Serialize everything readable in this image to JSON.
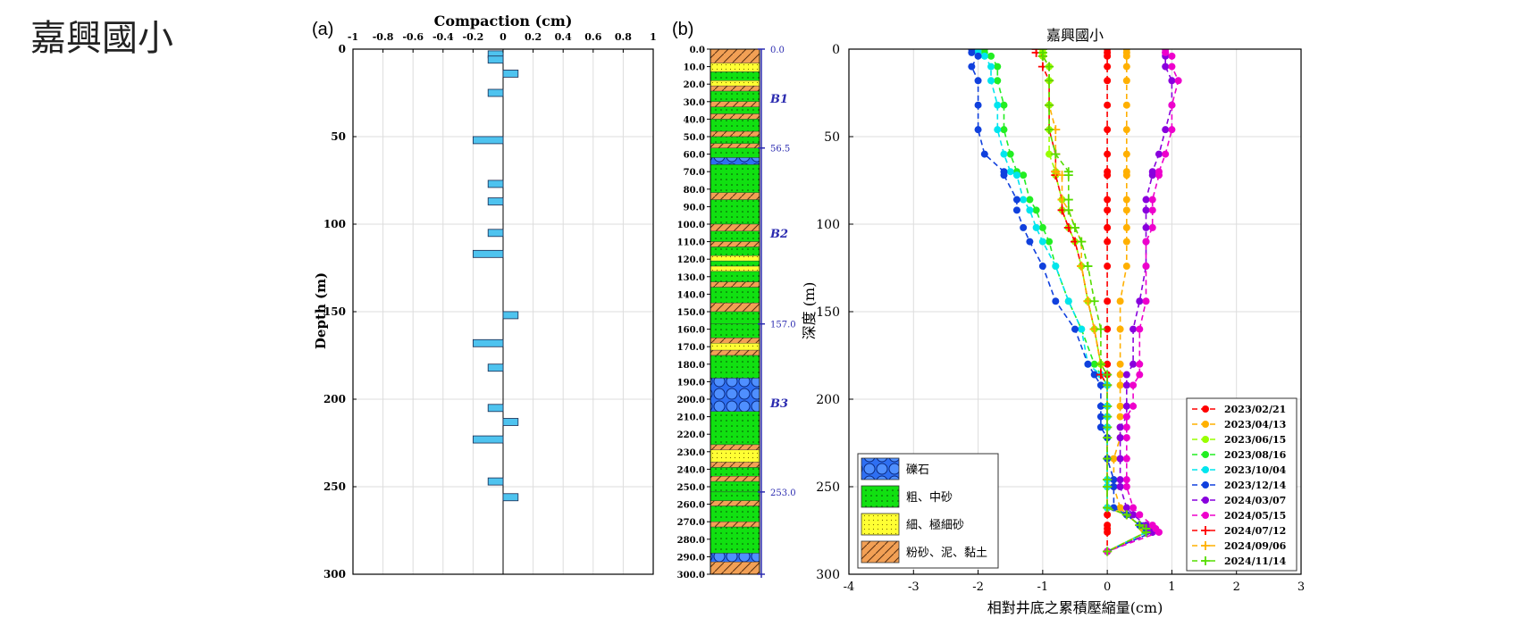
{
  "page_title": "嘉興國小",
  "panel_a_label": "(a)",
  "panel_b_label": "(b)",
  "chart_data": [
    {
      "type": "bar",
      "orientation": "horizontal",
      "title": "Compaction (cm)",
      "xlabel": "",
      "ylabel": "Depth (m)",
      "xlim": [
        -1,
        1
      ],
      "ylim": [
        0,
        300
      ],
      "x_ticks": [
        "-1",
        "-0.8",
        "-0.6",
        "-0.4",
        "-0.2",
        "0",
        "0.2",
        "0.4",
        "0.6",
        "0.8",
        "1"
      ],
      "y_ticks": [
        "0",
        "50",
        "100",
        "150",
        "200",
        "250",
        "300"
      ],
      "grid": true,
      "bars": [
        {
          "depth": 3,
          "value": -0.1
        },
        {
          "depth": 6,
          "value": -0.1
        },
        {
          "depth": 14,
          "value": 0.1
        },
        {
          "depth": 25,
          "value": -0.1
        },
        {
          "depth": 52,
          "value": -0.2
        },
        {
          "depth": 77,
          "value": -0.1
        },
        {
          "depth": 87,
          "value": -0.1
        },
        {
          "depth": 105,
          "value": -0.1
        },
        {
          "depth": 117,
          "value": -0.2
        },
        {
          "depth": 152,
          "value": 0.1
        },
        {
          "depth": 168,
          "value": -0.2
        },
        {
          "depth": 182,
          "value": -0.1
        },
        {
          "depth": 205,
          "value": -0.1
        },
        {
          "depth": 213,
          "value": 0.1
        },
        {
          "depth": 223,
          "value": -0.2
        },
        {
          "depth": 247,
          "value": -0.1
        },
        {
          "depth": 256,
          "value": 0.1
        }
      ]
    },
    {
      "type": "table",
      "subtype": "borehole-column",
      "depth_ticks": [
        "0.0",
        "10.0",
        "20.0",
        "30.0",
        "40.0",
        "50.0",
        "60.0",
        "70.0",
        "80.0",
        "90.0",
        "100.0",
        "110.0",
        "120.0",
        "130.0",
        "140.0",
        "150.0",
        "160.0",
        "170.0",
        "180.0",
        "190.0",
        "200.0",
        "210.0",
        "220.0",
        "230.0",
        "240.0",
        "250.0",
        "260.0",
        "270.0",
        "280.0",
        "290.0",
        "300.0"
      ],
      "marker_depths": [
        "0.0",
        "56.5",
        "157.0",
        "253.0"
      ],
      "marker_values": [
        0,
        56.5,
        157,
        253,
        300
      ],
      "layer_labels": [
        {
          "label": "B1",
          "depth": 28
        },
        {
          "label": "B2",
          "depth": 105
        },
        {
          "label": "B3",
          "depth": 202
        }
      ],
      "layers": [
        {
          "from": 0,
          "to": 8,
          "type": "silt"
        },
        {
          "from": 8,
          "to": 13,
          "type": "fine"
        },
        {
          "from": 13,
          "to": 18,
          "type": "coarse"
        },
        {
          "from": 18,
          "to": 21,
          "type": "fine"
        },
        {
          "from": 21,
          "to": 24,
          "type": "silt"
        },
        {
          "from": 24,
          "to": 30,
          "type": "coarse"
        },
        {
          "from": 30,
          "to": 33,
          "type": "silt"
        },
        {
          "from": 33,
          "to": 37,
          "type": "coarse"
        },
        {
          "from": 37,
          "to": 40,
          "type": "silt"
        },
        {
          "from": 40,
          "to": 47,
          "type": "coarse"
        },
        {
          "from": 47,
          "to": 50,
          "type": "silt"
        },
        {
          "from": 50,
          "to": 54,
          "type": "coarse"
        },
        {
          "from": 54,
          "to": 56.5,
          "type": "silt"
        },
        {
          "from": 56.5,
          "to": 62,
          "type": "coarse"
        },
        {
          "from": 62,
          "to": 66,
          "type": "gravel"
        },
        {
          "from": 66,
          "to": 82,
          "type": "coarse"
        },
        {
          "from": 82,
          "to": 86,
          "type": "silt"
        },
        {
          "from": 86,
          "to": 100,
          "type": "coarse"
        },
        {
          "from": 100,
          "to": 104,
          "type": "silt"
        },
        {
          "from": 104,
          "to": 110,
          "type": "coarse"
        },
        {
          "from": 110,
          "to": 113,
          "type": "silt"
        },
        {
          "from": 113,
          "to": 118,
          "type": "coarse"
        },
        {
          "from": 118,
          "to": 121,
          "type": "fine"
        },
        {
          "from": 121,
          "to": 124,
          "type": "coarse"
        },
        {
          "from": 124,
          "to": 127,
          "type": "fine"
        },
        {
          "from": 127,
          "to": 133,
          "type": "coarse"
        },
        {
          "from": 133,
          "to": 136,
          "type": "silt"
        },
        {
          "from": 136,
          "to": 145,
          "type": "coarse"
        },
        {
          "from": 145,
          "to": 150,
          "type": "silt"
        },
        {
          "from": 150,
          "to": 157,
          "type": "coarse"
        },
        {
          "from": 157,
          "to": 165,
          "type": "coarse"
        },
        {
          "from": 165,
          "to": 168,
          "type": "silt"
        },
        {
          "from": 168,
          "to": 172,
          "type": "fine"
        },
        {
          "from": 172,
          "to": 175,
          "type": "silt"
        },
        {
          "from": 175,
          "to": 188,
          "type": "coarse"
        },
        {
          "from": 188,
          "to": 207,
          "type": "gravel"
        },
        {
          "from": 207,
          "to": 226,
          "type": "coarse"
        },
        {
          "from": 226,
          "to": 229,
          "type": "silt"
        },
        {
          "from": 229,
          "to": 236,
          "type": "fine"
        },
        {
          "from": 236,
          "to": 239,
          "type": "silt"
        },
        {
          "from": 239,
          "to": 244,
          "type": "coarse"
        },
        {
          "from": 244,
          "to": 247,
          "type": "silt"
        },
        {
          "from": 247,
          "to": 253,
          "type": "coarse"
        },
        {
          "from": 253,
          "to": 258,
          "type": "coarse"
        },
        {
          "from": 258,
          "to": 261,
          "type": "silt"
        },
        {
          "from": 261,
          "to": 270,
          "type": "coarse"
        },
        {
          "from": 270,
          "to": 273,
          "type": "silt"
        },
        {
          "from": 273,
          "to": 288,
          "type": "coarse"
        },
        {
          "from": 288,
          "to": 293,
          "type": "gravel"
        },
        {
          "from": 293,
          "to": 300,
          "type": "silt"
        }
      ]
    },
    {
      "type": "line",
      "title": "嘉興國小",
      "xlabel": "相對井底之累積壓縮量(cm)",
      "ylabel": "深度 (m)",
      "xlim": [
        -4,
        3
      ],
      "ylim": [
        0,
        300
      ],
      "x_ticks": [
        "-4",
        "-3",
        "-2",
        "-1",
        "0",
        "1",
        "2",
        "3"
      ],
      "y_ticks": [
        "0",
        "50",
        "100",
        "150",
        "200",
        "250",
        "300"
      ],
      "grid": true,
      "legend_position": "bottom-right",
      "depths": [
        0,
        2,
        4,
        10,
        18,
        32,
        46,
        60,
        70,
        72,
        86,
        92,
        102,
        110,
        124,
        144,
        160,
        180,
        186,
        192,
        204,
        210,
        216,
        222,
        234,
        246,
        250,
        262,
        266,
        272,
        274,
        276,
        287
      ],
      "series": [
        {
          "name": "2023/02/21",
          "color": "#ff0000",
          "marker": "circle",
          "values": [
            0,
            0,
            0,
            0,
            0,
            0,
            0,
            0,
            0,
            0,
            0,
            0,
            0,
            0,
            0,
            0,
            0,
            0,
            0,
            0,
            0,
            0,
            0,
            0,
            0,
            0,
            0,
            0,
            0,
            0,
            0,
            0,
            0
          ]
        },
        {
          "name": "2023/04/13",
          "color": "#ffb000",
          "marker": "circle",
          "values": [
            0.3,
            0.3,
            0.3,
            0.3,
            0.3,
            0.3,
            0.3,
            0.3,
            0.3,
            0.3,
            0.3,
            0.3,
            0.3,
            0.3,
            0.3,
            0.2,
            0.2,
            0.2,
            0.2,
            0.2,
            0.2,
            0.2,
            0.2,
            0.2,
            0.1,
            0.1,
            0.1,
            0.2,
            0.3,
            0.5,
            0.55,
            0.6,
            0
          ]
        },
        {
          "name": "2023/06/15",
          "color": "#99ff00",
          "marker": "circle",
          "values": [
            -1.0,
            -1.0,
            -1.0,
            -0.9,
            -0.9,
            -0.9,
            -0.9,
            -0.9,
            -0.8,
            -0.8,
            -0.7,
            -0.7,
            -0.6,
            -0.5,
            -0.4,
            -0.3,
            -0.2,
            -0.1,
            -0.1,
            0,
            0,
            0,
            0,
            0,
            0,
            0,
            0,
            0,
            0.3,
            0.5,
            0.6,
            0.6,
            0
          ]
        },
        {
          "name": "2023/08/16",
          "color": "#22ee22",
          "marker": "circle",
          "values": [
            -1.9,
            -1.9,
            -1.8,
            -1.7,
            -1.7,
            -1.6,
            -1.6,
            -1.5,
            -1.4,
            -1.3,
            -1.2,
            -1.1,
            -1.0,
            -0.9,
            -0.8,
            -0.6,
            -0.4,
            -0.2,
            -0.1,
            0,
            0,
            0,
            0,
            0,
            0,
            0,
            0,
            0,
            0.3,
            0.5,
            0.6,
            0.6,
            0
          ]
        },
        {
          "name": "2023/10/04",
          "color": "#00e5ee",
          "marker": "circle",
          "values": [
            -2.0,
            -2.0,
            -1.9,
            -1.8,
            -1.8,
            -1.7,
            -1.7,
            -1.6,
            -1.5,
            -1.4,
            -1.3,
            -1.2,
            -1.1,
            -1.0,
            -0.8,
            -0.6,
            -0.4,
            -0.3,
            -0.1,
            0,
            0,
            0,
            0,
            0,
            0,
            0,
            0,
            0,
            0.3,
            0.5,
            0.6,
            0.6,
            0
          ]
        },
        {
          "name": "2023/12/14",
          "color": "#1040dd",
          "marker": "circle",
          "values": [
            -2.1,
            -2.1,
            -2.0,
            -2.1,
            -2.0,
            -2.0,
            -2.0,
            -1.9,
            -1.6,
            -1.6,
            -1.4,
            -1.4,
            -1.3,
            -1.2,
            -1.0,
            -0.8,
            -0.5,
            -0.3,
            -0.2,
            -0.1,
            -0.1,
            -0.1,
            -0.1,
            0,
            0,
            0.1,
            0.1,
            0.1,
            0.3,
            0.5,
            0.6,
            0.7,
            0
          ]
        },
        {
          "name": "2024/03/07",
          "color": "#8800dd",
          "marker": "circle",
          "values": [
            0.9,
            0.9,
            0.9,
            0.9,
            1.0,
            1.0,
            0.9,
            0.8,
            0.7,
            0.7,
            0.6,
            0.6,
            0.6,
            0.6,
            0.6,
            0.5,
            0.4,
            0.4,
            0.3,
            0.3,
            0.3,
            0.3,
            0.2,
            0.2,
            0.2,
            0.2,
            0.2,
            0.3,
            0.4,
            0.6,
            0.65,
            0.7,
            0
          ]
        },
        {
          "name": "2024/05/15",
          "color": "#ee00cc",
          "marker": "circle",
          "values": [
            0.9,
            0.9,
            1.0,
            1.0,
            1.1,
            1.0,
            1.0,
            0.9,
            0.8,
            0.8,
            0.7,
            0.7,
            0.7,
            0.6,
            0.6,
            0.6,
            0.5,
            0.5,
            0.5,
            0.4,
            0.4,
            0.3,
            0.3,
            0.3,
            0.3,
            0.3,
            0.3,
            0.4,
            0.5,
            0.7,
            0.75,
            0.8,
            0
          ]
        },
        {
          "name": "2024/07/12",
          "color": "#ff0000",
          "marker": "plus",
          "values": [
            -1.1,
            -1.1,
            -1.0,
            -1.0,
            -0.9,
            -0.9,
            -0.9,
            -0.8,
            -0.8,
            -0.8,
            -0.7,
            -0.7,
            -0.6,
            -0.5,
            -0.4,
            -0.3,
            -0.2,
            -0.1,
            -0.1,
            0,
            0,
            0,
            0,
            0,
            0,
            0,
            0,
            0,
            0.3,
            0.5,
            0.6,
            0.6,
            0
          ]
        },
        {
          "name": "2024/09/06",
          "color": "#ffb000",
          "marker": "plus",
          "values": [
            -1.0,
            -1.0,
            -1.0,
            -0.9,
            -0.9,
            -0.9,
            -0.8,
            -0.8,
            -0.8,
            -0.7,
            -0.7,
            -0.6,
            -0.5,
            -0.4,
            -0.4,
            -0.3,
            -0.2,
            -0.1,
            0,
            0,
            0,
            0,
            0,
            0,
            0,
            0,
            0,
            0,
            0.3,
            0.5,
            0.6,
            0.6,
            0
          ]
        },
        {
          "name": "2024/11/14",
          "color": "#55dd00",
          "marker": "plus",
          "values": [
            -1.0,
            -1.0,
            -1.0,
            -0.9,
            -0.9,
            -0.9,
            -0.9,
            -0.8,
            -0.6,
            -0.6,
            -0.6,
            -0.6,
            -0.5,
            -0.4,
            -0.3,
            -0.2,
            -0.1,
            -0.1,
            0,
            0,
            0,
            0,
            0,
            0,
            0,
            0,
            0,
            0,
            0.3,
            0.5,
            0.6,
            0.6,
            0
          ]
        }
      ],
      "lithology_legend": [
        {
          "label": "礫石",
          "pattern": "gravel"
        },
        {
          "label": "粗、中砂",
          "pattern": "coarse"
        },
        {
          "label": "細、極細砂",
          "pattern": "fine"
        },
        {
          "label": "粉砂、泥、黏土",
          "pattern": "silt"
        }
      ]
    }
  ]
}
